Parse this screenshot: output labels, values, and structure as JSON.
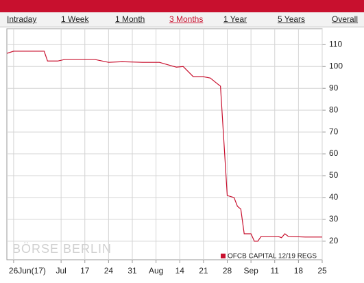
{
  "tabs": [
    {
      "label": "Intraday",
      "active": false
    },
    {
      "label": "1 Week",
      "active": false
    },
    {
      "label": "1 Month",
      "active": false
    },
    {
      "label": "3 Months",
      "active": true
    },
    {
      "label": "1 Year",
      "active": false
    },
    {
      "label": "5 Years",
      "active": false
    },
    {
      "label": "Overall",
      "active": false
    }
  ],
  "chart_data": {
    "type": "line",
    "watermark": "BÖRSE BERLIN",
    "x": [
      "2017-06-24",
      "2017-06-26",
      "2017-07-05",
      "2017-07-06",
      "2017-07-09",
      "2017-07-11",
      "2017-07-20",
      "2017-07-24",
      "2017-07-28",
      "2017-08-03",
      "2017-08-08",
      "2017-08-10",
      "2017-08-13",
      "2017-08-15",
      "2017-08-18",
      "2017-08-21",
      "2017-08-23",
      "2017-08-25",
      "2017-08-26",
      "2017-08-28",
      "2017-08-30",
      "2017-08-31",
      "2017-09-01",
      "2017-09-02",
      "2017-09-04",
      "2017-09-05",
      "2017-09-06",
      "2017-09-07",
      "2017-09-12",
      "2017-09-13",
      "2017-09-14",
      "2017-09-15",
      "2017-09-20",
      "2017-09-25"
    ],
    "series": [
      {
        "name": "OFCB CAPITAL 12/19 REGS",
        "color": "#c8102e",
        "values": [
          106,
          107,
          107,
          102.5,
          102.5,
          103.2,
          103.2,
          101.9,
          102.2,
          101.9,
          101.9,
          101,
          99.7,
          100,
          95.3,
          95.3,
          94.7,
          92.2,
          91,
          40.9,
          40,
          36,
          34.7,
          23.4,
          23.4,
          20,
          20,
          22.2,
          22.2,
          21.6,
          23.4,
          22.2,
          21.9,
          21.9
        ]
      }
    ],
    "xlim": [
      "2017-06-24",
      "2017-09-25"
    ],
    "xticks": [
      {
        "value": "2017-06-26",
        "label": "26Jun(17)"
      },
      {
        "value": "2017-07-10",
        "label": "Jul"
      },
      {
        "value": "2017-07-17",
        "label": "17"
      },
      {
        "value": "2017-07-24",
        "label": "24"
      },
      {
        "value": "2017-07-31",
        "label": "31"
      },
      {
        "value": "2017-08-07",
        "label": "Aug"
      },
      {
        "value": "2017-08-14",
        "label": "14"
      },
      {
        "value": "2017-08-21",
        "label": "21"
      },
      {
        "value": "2017-08-28",
        "label": "28"
      },
      {
        "value": "2017-09-04",
        "label": "Sep"
      },
      {
        "value": "2017-09-11",
        "label": "11"
      },
      {
        "value": "2017-09-18",
        "label": "18"
      },
      {
        "value": "2017-09-25",
        "label": "25"
      }
    ],
    "ylim": [
      11.5,
      117.3
    ],
    "yticks": [
      20,
      30,
      40,
      50,
      60,
      70,
      80,
      90,
      100,
      110
    ],
    "grid": true,
    "legend": "lower right"
  }
}
